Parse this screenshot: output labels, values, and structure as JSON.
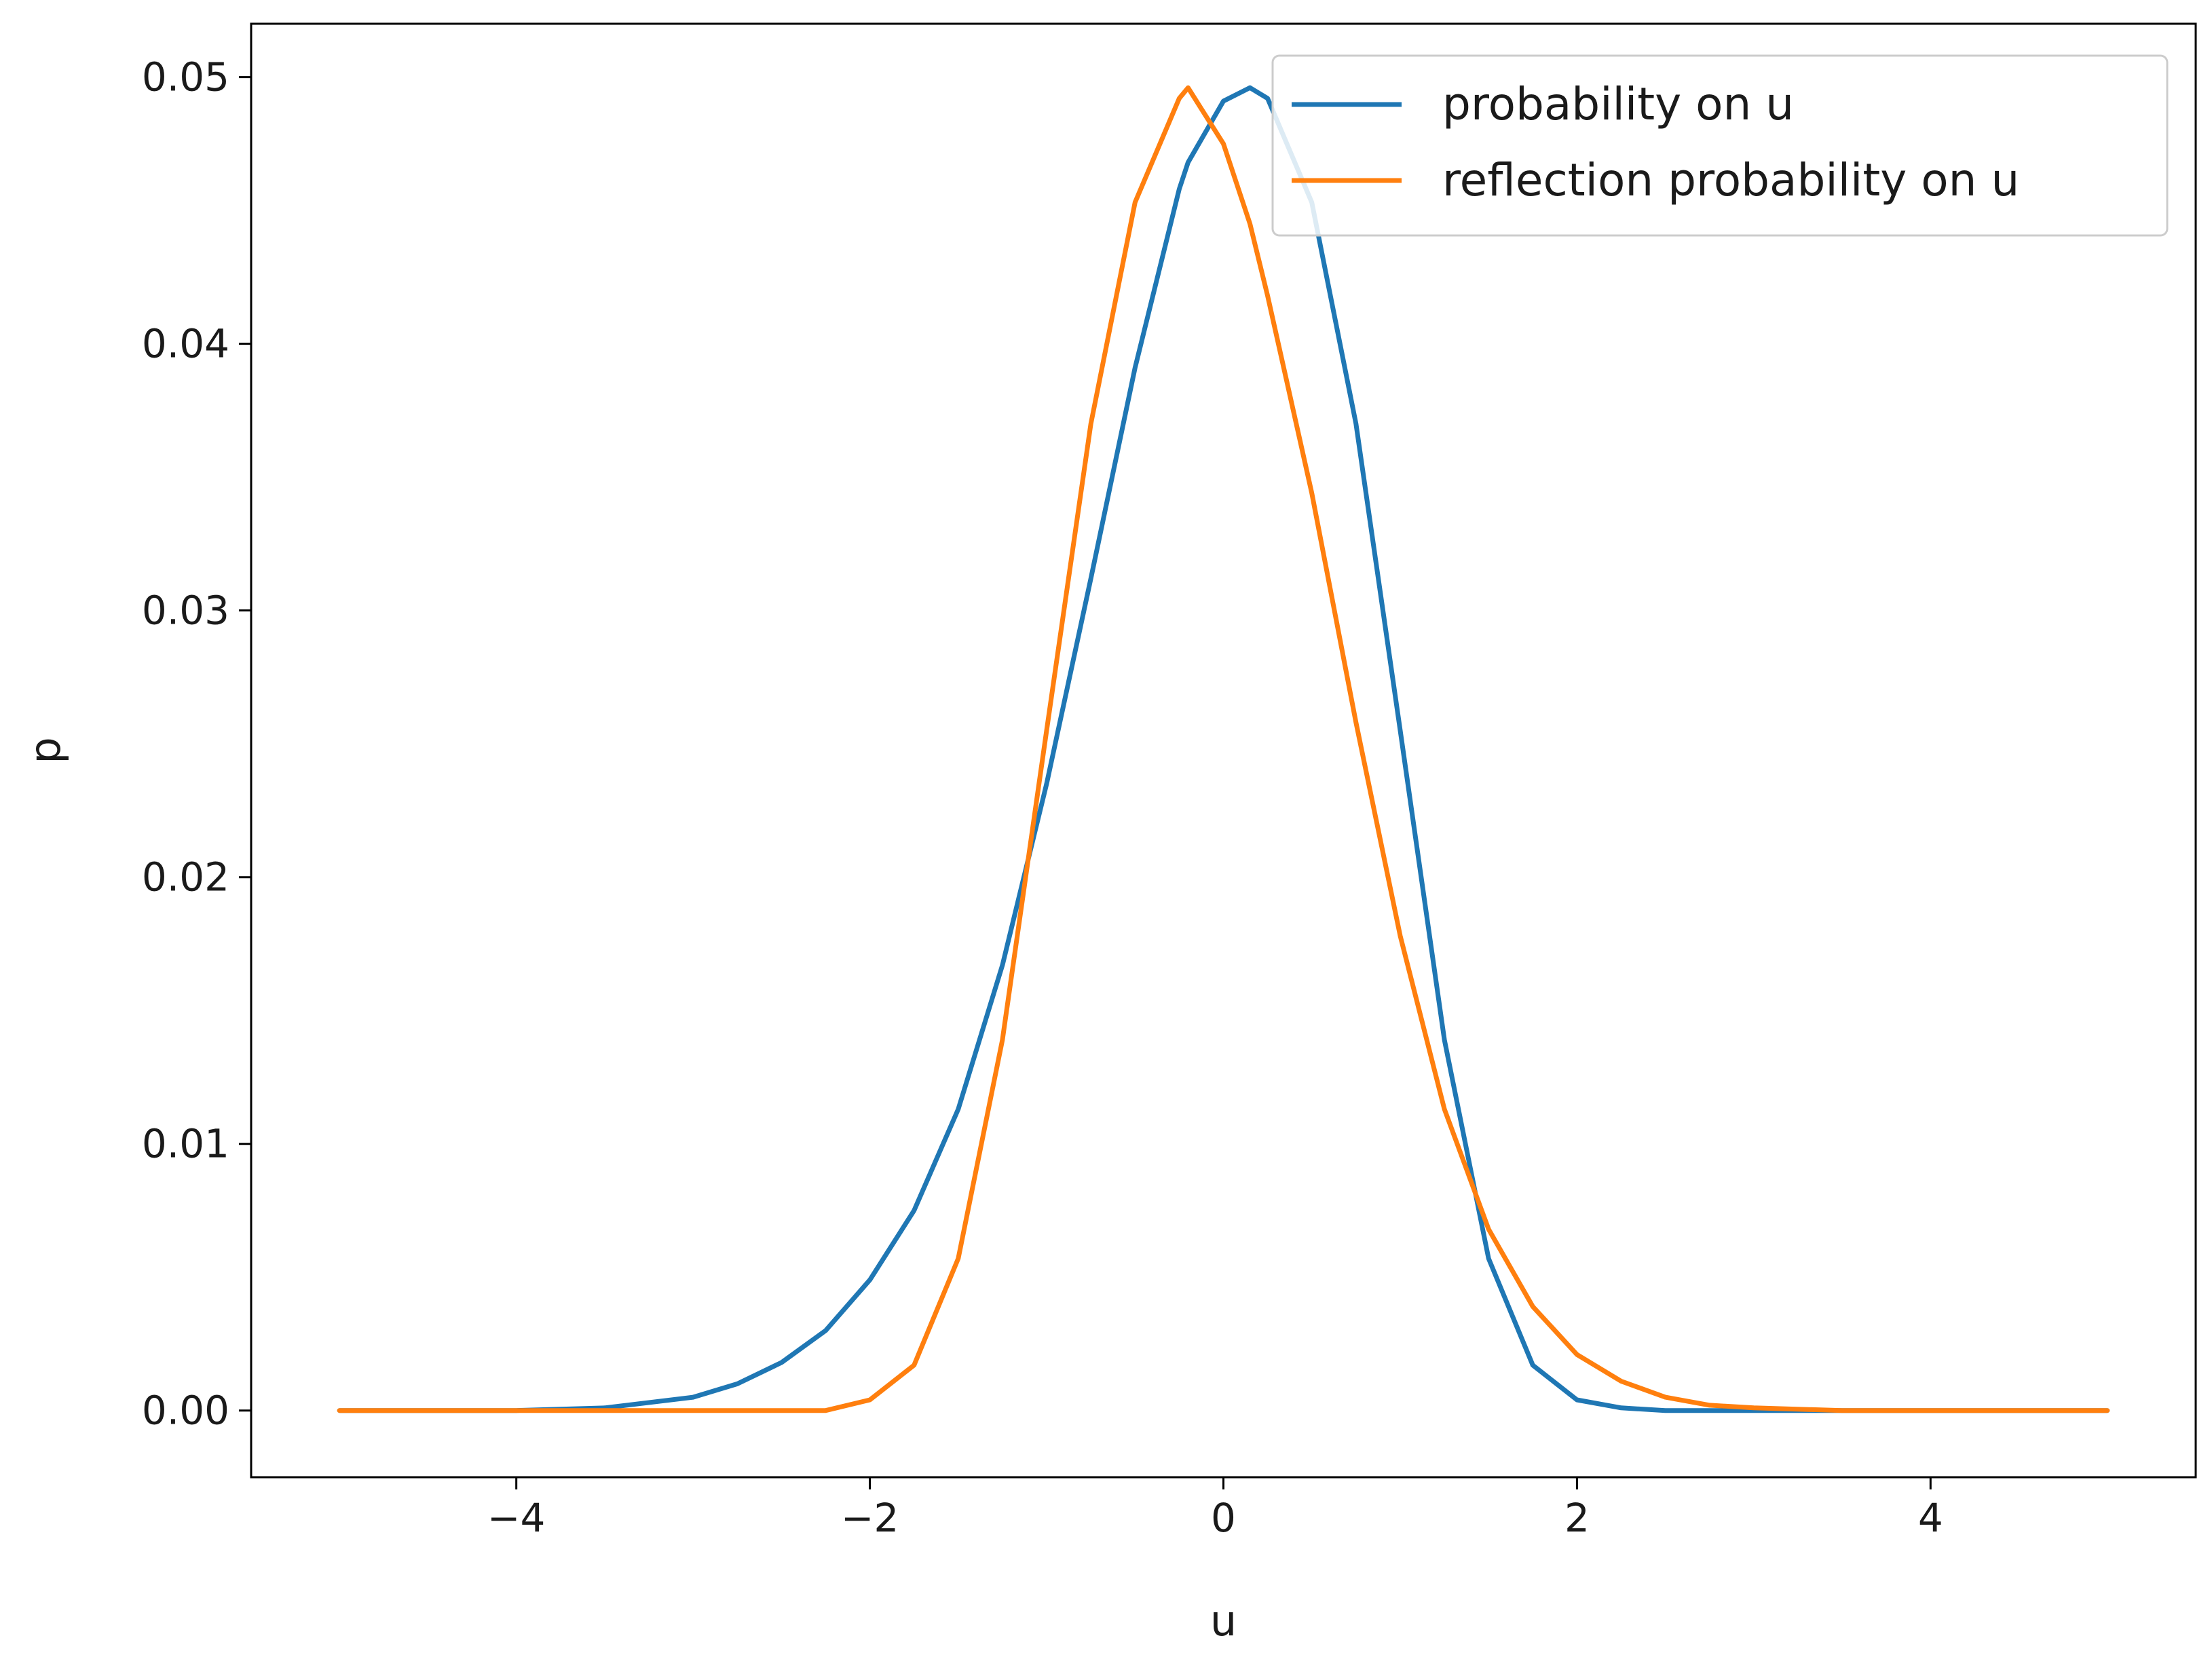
{
  "chart_data": {
    "type": "line",
    "title": "",
    "xlabel": "u",
    "ylabel": "p",
    "xlim": [
      -5.5,
      5.5
    ],
    "ylim": [
      -0.0025,
      0.052
    ],
    "xticks": [
      -4,
      -2,
      0,
      2,
      4
    ],
    "xtick_labels": [
      "−4",
      "−2",
      "0",
      "2",
      "4"
    ],
    "yticks": [
      0.0,
      0.01,
      0.02,
      0.03,
      0.04,
      0.05
    ],
    "ytick_labels": [
      "0.00",
      "0.01",
      "0.02",
      "0.03",
      "0.04",
      "0.05"
    ],
    "grid": false,
    "legend_position": "top-right",
    "x": [
      -5.0,
      -4.5,
      -4.0,
      -3.5,
      -3.0,
      -2.75,
      -2.5,
      -2.25,
      -2.0,
      -1.75,
      -1.5,
      -1.25,
      -1.0,
      -0.75,
      -0.5,
      -0.25,
      -0.2,
      0.0,
      0.15,
      0.25,
      0.5,
      0.75,
      1.0,
      1.25,
      1.5,
      1.75,
      2.0,
      2.25,
      2.5,
      2.75,
      3.0,
      3.5,
      4.0,
      4.5,
      5.0
    ],
    "series": [
      {
        "name": "probability on u",
        "color": "#1f77b4",
        "values": [
          0.0,
          0.0,
          0.0,
          0.0001,
          0.0005,
          0.001,
          0.0018,
          0.003,
          0.0049,
          0.0075,
          0.0113,
          0.0167,
          0.0235,
          0.0312,
          0.0391,
          0.0458,
          0.0468,
          0.0491,
          0.0496,
          0.0492,
          0.0453,
          0.037,
          0.0255,
          0.0139,
          0.0057,
          0.0017,
          0.0004,
          0.0001,
          0.0,
          0.0,
          0.0,
          0.0,
          0.0,
          0.0,
          0.0
        ]
      },
      {
        "name": "reflection probability on u",
        "color": "#ff7f0e",
        "values": [
          0.0,
          0.0,
          0.0,
          0.0,
          0.0,
          0.0,
          0.0,
          0.0,
          0.0004,
          0.0017,
          0.0057,
          0.0139,
          0.0255,
          0.037,
          0.0453,
          0.0492,
          0.0496,
          0.0475,
          0.0445,
          0.0418,
          0.0344,
          0.0258,
          0.0178,
          0.0113,
          0.0068,
          0.0039,
          0.0021,
          0.0011,
          0.0005,
          0.0002,
          0.0001,
          0.0,
          0.0,
          0.0,
          0.0
        ]
      }
    ]
  }
}
